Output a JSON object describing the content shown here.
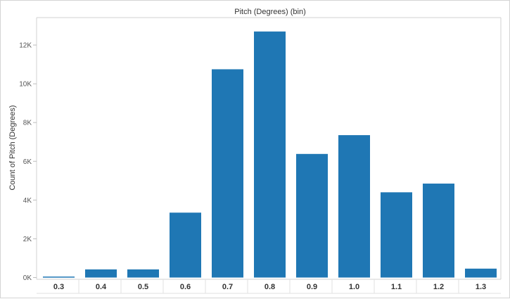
{
  "chart_data": {
    "type": "bar",
    "title": "Pitch (Degrees) (bin)",
    "xlabel": "",
    "ylabel": "Count of Pitch (Degrees)",
    "categories": [
      "0.3",
      "0.4",
      "0.5",
      "0.6",
      "0.7",
      "0.8",
      "0.9",
      "1.0",
      "1.1",
      "1.2",
      "1.3"
    ],
    "values": [
      50,
      420,
      420,
      3350,
      10750,
      12700,
      6380,
      7350,
      4400,
      4850,
      460
    ],
    "ylim": [
      0,
      13000
    ],
    "yticks": [
      0,
      2000,
      4000,
      6000,
      8000,
      10000,
      12000
    ],
    "ytick_labels": [
      "0K",
      "2K",
      "4K",
      "6K",
      "8K",
      "10K",
      "12K"
    ],
    "bar_color": "#1f77b4",
    "grid": false,
    "legend": "none"
  }
}
